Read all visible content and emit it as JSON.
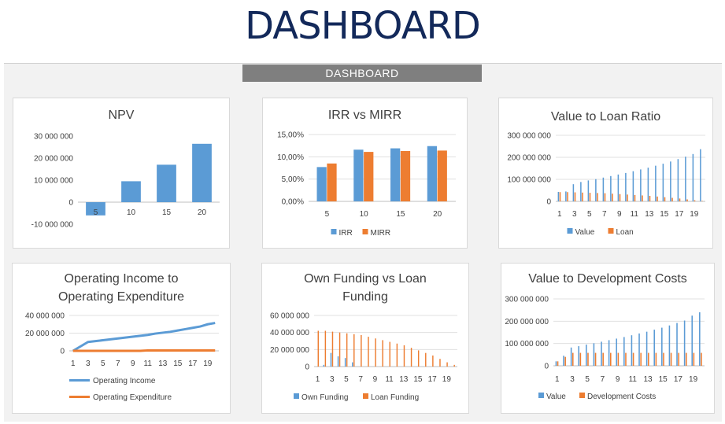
{
  "page": {
    "title": "DASHBOARD",
    "banner": "DASHBOARD"
  },
  "colors": {
    "blue": "#5b9bd5",
    "orange": "#ed7d31",
    "grid": "#e0e0e0",
    "axis": "#bfbfbf"
  },
  "chart_data": [
    {
      "id": "npv",
      "type": "bar",
      "title": "NPV",
      "categories": [
        "5",
        "10",
        "15",
        "20"
      ],
      "series": [
        {
          "values": [
            -6000000,
            9500000,
            17000000,
            26500000
          ]
        }
      ],
      "ylim": [
        -10000000,
        30000000
      ],
      "yticks": [
        -10000000,
        0,
        10000000,
        20000000,
        30000000
      ],
      "ytick_labels": [
        "-10 000 000",
        "0",
        "10 000 000",
        "20 000 000",
        "30 000 000"
      ],
      "grid": false,
      "legend": "none"
    },
    {
      "id": "irr",
      "type": "bar",
      "title": "IRR vs MIRR",
      "categories": [
        "5",
        "10",
        "15",
        "20"
      ],
      "series": [
        {
          "name": "IRR",
          "values": [
            0.077,
            0.116,
            0.119,
            0.124
          ]
        },
        {
          "name": "MIRR",
          "values": [
            0.085,
            0.111,
            0.113,
            0.114
          ]
        }
      ],
      "ylim": [
        0,
        0.15
      ],
      "yticks": [
        0,
        0.05,
        0.1,
        0.15
      ],
      "ytick_labels": [
        "0,00%",
        "5,00%",
        "10,00%",
        "15,00%"
      ],
      "grid": true,
      "legend": "bottom"
    },
    {
      "id": "vlr",
      "type": "bar",
      "title": "Value to Loan Ratio",
      "categories": [
        "1",
        "2",
        "3",
        "4",
        "5",
        "6",
        "7",
        "8",
        "9",
        "10",
        "11",
        "12",
        "13",
        "14",
        "15",
        "16",
        "17",
        "18",
        "19",
        "20"
      ],
      "xtick_labels": [
        "1",
        "3",
        "5",
        "7",
        "9",
        "11",
        "13",
        "15",
        "17",
        "19"
      ],
      "series": [
        {
          "name": "Value",
          "values": [
            43000000,
            45000000,
            78000000,
            88000000,
            95000000,
            101000000,
            108000000,
            115000000,
            122000000,
            129000000,
            137000000,
            145000000,
            153000000,
            162000000,
            171000000,
            181000000,
            192000000,
            203000000,
            215000000,
            237000000
          ]
        },
        {
          "name": "Loan",
          "values": [
            42000000,
            42000000,
            41000000,
            40000000,
            39000000,
            38000000,
            37000000,
            35000000,
            33000000,
            31000000,
            29000000,
            27000000,
            25000000,
            22000000,
            19000000,
            16000000,
            13000000,
            9000000,
            5000000,
            2000000
          ]
        }
      ],
      "ylim": [
        0,
        300000000
      ],
      "yticks": [
        0,
        100000000,
        200000000,
        300000000
      ],
      "ytick_labels": [
        "0",
        "100 000 000",
        "200 000 000",
        "300 000 000"
      ],
      "grid": true,
      "legend": "bottom"
    },
    {
      "id": "oie",
      "type": "line",
      "title": "Operating Income to Operating Expenditure",
      "title_lines": [
        "Operating Income to",
        "Operating Expenditure"
      ],
      "categories": [
        "1",
        "2",
        "3",
        "4",
        "5",
        "6",
        "7",
        "8",
        "9",
        "10",
        "11",
        "12",
        "13",
        "14",
        "15",
        "16",
        "17",
        "18",
        "19",
        "20"
      ],
      "xtick_labels": [
        "1",
        "3",
        "5",
        "7",
        "9",
        "11",
        "13",
        "15",
        "17",
        "19"
      ],
      "series": [
        {
          "name": "Operating Income",
          "values": [
            0,
            5000000,
            10000000,
            11000000,
            12000000,
            13000000,
            14000000,
            15000000,
            16000000,
            17000000,
            18000000,
            19500000,
            20500000,
            21500000,
            23000000,
            24500000,
            26000000,
            27500000,
            30000000,
            31500000
          ]
        },
        {
          "name": "Operating Expenditure",
          "values": [
            0,
            0,
            0,
            0,
            0,
            0,
            0,
            0,
            0,
            0,
            500000,
            500000,
            500000,
            500000,
            500000,
            500000,
            500000,
            500000,
            500000,
            500000
          ]
        }
      ],
      "ylim": [
        0,
        40000000
      ],
      "yticks": [
        0,
        20000000,
        40000000
      ],
      "ytick_labels": [
        "0",
        "20 000 000",
        "40 000 000"
      ],
      "grid": true,
      "legend": "bottom"
    },
    {
      "id": "ofl",
      "type": "bar",
      "title": "Own Funding vs Loan Funding",
      "title_lines": [
        "Own Funding vs Loan",
        "Funding"
      ],
      "categories": [
        "1",
        "2",
        "3",
        "4",
        "5",
        "6",
        "7",
        "8",
        "9",
        "10",
        "11",
        "12",
        "13",
        "14",
        "15",
        "16",
        "17",
        "18",
        "19",
        "20"
      ],
      "xtick_labels": [
        "1",
        "3",
        "5",
        "7",
        "9",
        "11",
        "13",
        "15",
        "17",
        "19"
      ],
      "series": [
        {
          "name": "Own Funding",
          "values": [
            0,
            2000000,
            16000000,
            12000000,
            10000000,
            5000000,
            0,
            0,
            0,
            0,
            0,
            0,
            0,
            0,
            0,
            0,
            0,
            0,
            0,
            0
          ]
        },
        {
          "name": "Loan Funding",
          "values": [
            42000000,
            42000000,
            41000000,
            40000000,
            39000000,
            38000000,
            37000000,
            35000000,
            33000000,
            31000000,
            29000000,
            27000000,
            25000000,
            22000000,
            19000000,
            16000000,
            13000000,
            9000000,
            5000000,
            2000000
          ]
        }
      ],
      "ylim": [
        0,
        60000000
      ],
      "yticks": [
        0,
        20000000,
        40000000,
        60000000
      ],
      "ytick_labels": [
        "0",
        "20 000 000",
        "40 000 000",
        "60 000 000"
      ],
      "grid": true,
      "legend": "bottom"
    },
    {
      "id": "vdc",
      "type": "bar",
      "title": "Value to Development Costs",
      "categories": [
        "1",
        "2",
        "3",
        "4",
        "5",
        "6",
        "7",
        "8",
        "9",
        "10",
        "11",
        "12",
        "13",
        "14",
        "15",
        "16",
        "17",
        "18",
        "19",
        "20"
      ],
      "xtick_labels": [
        "1",
        "3",
        "5",
        "7",
        "9",
        "11",
        "13",
        "15",
        "17",
        "19"
      ],
      "series": [
        {
          "name": "Value",
          "values": [
            20000000,
            45000000,
            82000000,
            88000000,
            95000000,
            101000000,
            108000000,
            115000000,
            122000000,
            129000000,
            137000000,
            145000000,
            153000000,
            162000000,
            171000000,
            181000000,
            192000000,
            203000000,
            225000000,
            240000000
          ]
        },
        {
          "name": "Development Costs",
          "values": [
            20000000,
            40000000,
            58000000,
            58000000,
            58000000,
            58000000,
            58000000,
            58000000,
            58000000,
            58000000,
            58000000,
            58000000,
            58000000,
            58000000,
            58000000,
            58000000,
            58000000,
            58000000,
            58000000,
            58000000
          ]
        }
      ],
      "ylim": [
        0,
        300000000
      ],
      "yticks": [
        0,
        100000000,
        200000000,
        300000000
      ],
      "ytick_labels": [
        "0",
        "100 000 000",
        "200 000 000",
        "300 000 000"
      ],
      "grid": true,
      "legend": "bottom"
    }
  ]
}
